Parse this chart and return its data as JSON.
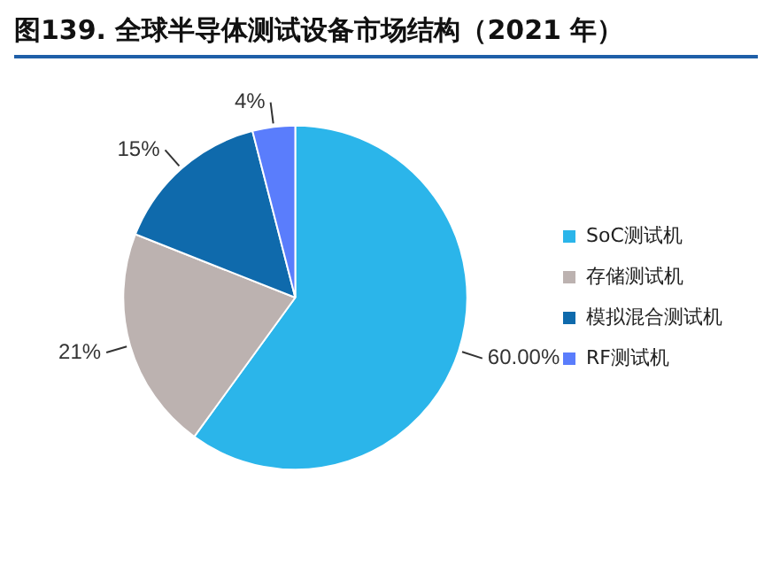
{
  "chart_data": {
    "type": "pie",
    "title": "图139. 全球半导体测试设备市场结构（2021 年）",
    "categories": [
      "SoC测试机",
      "存储测试机",
      "模拟混合测试机",
      "RF测试机"
    ],
    "values": [
      60,
      21,
      15,
      4
    ],
    "colors": [
      "#2bb5ea",
      "#bcb2b0",
      "#0f6aac",
      "#5a7dfc"
    ],
    "value_labels": [
      "60.00%",
      "21%",
      "15%",
      "4%"
    ],
    "legend": "right"
  }
}
